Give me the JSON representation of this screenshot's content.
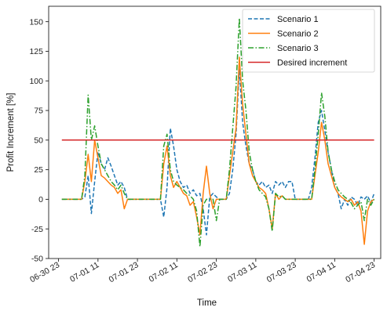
{
  "chart_data": {
    "type": "line",
    "title": "",
    "xlabel": "Time",
    "ylabel": "Profit Increment [%]",
    "xlim": [
      "2021-06-30 20:00",
      "2021-07-05 01:00"
    ],
    "ylim": [
      -50,
      163
    ],
    "yticks": [
      -50,
      -25,
      0,
      25,
      50,
      75,
      100,
      125,
      150
    ],
    "xticks": [
      {
        "t": "2021-06-30 23:00",
        "label": "06-30 23"
      },
      {
        "t": "2021-07-01 11:00",
        "label": "07-01 11"
      },
      {
        "t": "2021-07-01 23:00",
        "label": "07-01 23"
      },
      {
        "t": "2021-07-02 11:00",
        "label": "07-02 11"
      },
      {
        "t": "2021-07-02 23:00",
        "label": "07-02 23"
      },
      {
        "t": "2021-07-03 11:00",
        "label": "07-03 11"
      },
      {
        "t": "2021-07-03 23:00",
        "label": "07-03 23"
      },
      {
        "t": "2021-07-04 11:00",
        "label": "07-04 11"
      },
      {
        "t": "2021-07-04 23:00",
        "label": "07-04 23"
      }
    ],
    "grid": false,
    "legend_position": "top-right",
    "series": [
      {
        "name": "Scenario 1",
        "color": "#1f77b4",
        "dash": "dashed",
        "points": [
          [
            "2021-07-01 00:00",
            0
          ],
          [
            "2021-07-01 06:00",
            0
          ],
          [
            "2021-07-01 07:00",
            2
          ],
          [
            "2021-07-01 08:00",
            20
          ],
          [
            "2021-07-01 09:00",
            -12
          ],
          [
            "2021-07-01 10:00",
            15
          ],
          [
            "2021-07-01 11:00",
            40
          ],
          [
            "2021-07-01 12:00",
            30
          ],
          [
            "2021-07-01 13:00",
            25
          ],
          [
            "2021-07-01 14:00",
            35
          ],
          [
            "2021-07-01 15:00",
            28
          ],
          [
            "2021-07-01 16:00",
            20
          ],
          [
            "2021-07-01 17:00",
            12
          ],
          [
            "2021-07-01 18:00",
            15
          ],
          [
            "2021-07-01 19:00",
            10
          ],
          [
            "2021-07-01 20:00",
            0
          ],
          [
            "2021-07-02 06:00",
            0
          ],
          [
            "2021-07-02 07:00",
            -15
          ],
          [
            "2021-07-02 08:00",
            10
          ],
          [
            "2021-07-02 09:00",
            60
          ],
          [
            "2021-07-02 10:00",
            45
          ],
          [
            "2021-07-02 11:00",
            25
          ],
          [
            "2021-07-02 12:00",
            15
          ],
          [
            "2021-07-02 13:00",
            10
          ],
          [
            "2021-07-02 14:00",
            12
          ],
          [
            "2021-07-02 15:00",
            5
          ],
          [
            "2021-07-02 16:00",
            8
          ],
          [
            "2021-07-02 17:00",
            3
          ],
          [
            "2021-07-02 18:00",
            5
          ],
          [
            "2021-07-02 19:00",
            -8
          ],
          [
            "2021-07-02 20:00",
            -30
          ],
          [
            "2021-07-02 21:00",
            2
          ],
          [
            "2021-07-02 22:00",
            5
          ],
          [
            "2021-07-02 23:00",
            2
          ],
          [
            "2021-07-03 00:00",
            0
          ],
          [
            "2021-07-03 02:00",
            0
          ],
          [
            "2021-07-03 03:00",
            5
          ],
          [
            "2021-07-03 04:00",
            25
          ],
          [
            "2021-07-03 05:00",
            55
          ],
          [
            "2021-07-03 06:00",
            110
          ],
          [
            "2021-07-03 07:00",
            65
          ],
          [
            "2021-07-03 08:00",
            45
          ],
          [
            "2021-07-03 09:00",
            30
          ],
          [
            "2021-07-03 10:00",
            25
          ],
          [
            "2021-07-03 11:00",
            15
          ],
          [
            "2021-07-03 12:00",
            12
          ],
          [
            "2021-07-03 13:00",
            15
          ],
          [
            "2021-07-03 14:00",
            10
          ],
          [
            "2021-07-03 15:00",
            12
          ],
          [
            "2021-07-03 16:00",
            5
          ],
          [
            "2021-07-03 17:00",
            15
          ],
          [
            "2021-07-03 18:00",
            12
          ],
          [
            "2021-07-03 19:00",
            15
          ],
          [
            "2021-07-03 20:00",
            10
          ],
          [
            "2021-07-03 21:00",
            15
          ],
          [
            "2021-07-03 22:00",
            15
          ],
          [
            "2021-07-03 23:00",
            0
          ],
          [
            "2021-07-04 03:00",
            0
          ],
          [
            "2021-07-04 04:00",
            10
          ],
          [
            "2021-07-04 05:00",
            35
          ],
          [
            "2021-07-04 06:00",
            65
          ],
          [
            "2021-07-04 07:00",
            75
          ],
          [
            "2021-07-04 08:00",
            58
          ],
          [
            "2021-07-04 09:00",
            40
          ],
          [
            "2021-07-04 10:00",
            25
          ],
          [
            "2021-07-04 11:00",
            10
          ],
          [
            "2021-07-04 12:00",
            5
          ],
          [
            "2021-07-04 13:00",
            -8
          ],
          [
            "2021-07-04 14:00",
            0
          ],
          [
            "2021-07-04 15:00",
            -5
          ],
          [
            "2021-07-04 16:00",
            2
          ],
          [
            "2021-07-04 17:00",
            0
          ],
          [
            "2021-07-04 18:00",
            -5
          ],
          [
            "2021-07-04 19:00",
            2
          ],
          [
            "2021-07-04 20:00",
            0
          ],
          [
            "2021-07-04 21:00",
            3
          ],
          [
            "2021-07-04 22:00",
            -3
          ],
          [
            "2021-07-04 23:00",
            5
          ]
        ]
      },
      {
        "name": "Scenario 2",
        "color": "#ff7f0e",
        "dash": "solid",
        "points": [
          [
            "2021-07-01 00:00",
            0
          ],
          [
            "2021-07-01 06:00",
            0
          ],
          [
            "2021-07-01 07:00",
            15
          ],
          [
            "2021-07-01 08:00",
            38
          ],
          [
            "2021-07-01 09:00",
            15
          ],
          [
            "2021-07-01 10:00",
            50
          ],
          [
            "2021-07-01 11:00",
            35
          ],
          [
            "2021-07-01 12:00",
            20
          ],
          [
            "2021-07-01 13:00",
            18
          ],
          [
            "2021-07-01 14:00",
            15
          ],
          [
            "2021-07-01 15:00",
            12
          ],
          [
            "2021-07-01 16:00",
            10
          ],
          [
            "2021-07-01 17:00",
            5
          ],
          [
            "2021-07-01 18:00",
            8
          ],
          [
            "2021-07-01 19:00",
            -8
          ],
          [
            "2021-07-01 20:00",
            0
          ],
          [
            "2021-07-02 06:00",
            0
          ],
          [
            "2021-07-02 07:00",
            30
          ],
          [
            "2021-07-02 08:00",
            45
          ],
          [
            "2021-07-02 09:00",
            20
          ],
          [
            "2021-07-02 10:00",
            10
          ],
          [
            "2021-07-02 11:00",
            15
          ],
          [
            "2021-07-02 12:00",
            10
          ],
          [
            "2021-07-02 13:00",
            5
          ],
          [
            "2021-07-02 14:00",
            3
          ],
          [
            "2021-07-02 15:00",
            -5
          ],
          [
            "2021-07-02 16:00",
            -2
          ],
          [
            "2021-07-02 17:00",
            -15
          ],
          [
            "2021-07-02 18:00",
            -30
          ],
          [
            "2021-07-02 19:00",
            5
          ],
          [
            "2021-07-02 20:00",
            28
          ],
          [
            "2021-07-02 21:00",
            5
          ],
          [
            "2021-07-02 22:00",
            -8
          ],
          [
            "2021-07-02 23:00",
            0
          ],
          [
            "2021-07-03 02:00",
            0
          ],
          [
            "2021-07-03 03:00",
            20
          ],
          [
            "2021-07-03 04:00",
            40
          ],
          [
            "2021-07-03 05:00",
            60
          ],
          [
            "2021-07-03 06:00",
            120
          ],
          [
            "2021-07-03 07:00",
            80
          ],
          [
            "2021-07-03 08:00",
            55
          ],
          [
            "2021-07-03 09:00",
            30
          ],
          [
            "2021-07-03 10:00",
            20
          ],
          [
            "2021-07-03 11:00",
            15
          ],
          [
            "2021-07-03 12:00",
            10
          ],
          [
            "2021-07-03 13:00",
            8
          ],
          [
            "2021-07-03 14:00",
            5
          ],
          [
            "2021-07-03 15:00",
            -8
          ],
          [
            "2021-07-03 16:00",
            -25
          ],
          [
            "2021-07-03 17:00",
            5
          ],
          [
            "2021-07-03 18:00",
            0
          ],
          [
            "2021-07-03 19:00",
            3
          ],
          [
            "2021-07-03 20:00",
            0
          ],
          [
            "2021-07-04 04:00",
            0
          ],
          [
            "2021-07-04 05:00",
            20
          ],
          [
            "2021-07-04 06:00",
            40
          ],
          [
            "2021-07-04 07:00",
            65
          ],
          [
            "2021-07-04 08:00",
            50
          ],
          [
            "2021-07-04 09:00",
            30
          ],
          [
            "2021-07-04 10:00",
            20
          ],
          [
            "2021-07-04 11:00",
            10
          ],
          [
            "2021-07-04 12:00",
            5
          ],
          [
            "2021-07-04 13:00",
            2
          ],
          [
            "2021-07-04 14:00",
            0
          ],
          [
            "2021-07-04 15:00",
            -2
          ],
          [
            "2021-07-04 16:00",
            0
          ],
          [
            "2021-07-04 17:00",
            -5
          ],
          [
            "2021-07-04 18:00",
            -2
          ],
          [
            "2021-07-04 19:00",
            -10
          ],
          [
            "2021-07-04 20:00",
            -38
          ],
          [
            "2021-07-04 21:00",
            -10
          ],
          [
            "2021-07-04 22:00",
            -2
          ],
          [
            "2021-07-04 23:00",
            0
          ]
        ]
      },
      {
        "name": "Scenario 3",
        "color": "#2ca02c",
        "dash": "dashdot",
        "points": [
          [
            "2021-07-01 00:00",
            0
          ],
          [
            "2021-07-01 06:00",
            0
          ],
          [
            "2021-07-01 07:00",
            20
          ],
          [
            "2021-07-01 08:00",
            88
          ],
          [
            "2021-07-01 09:00",
            50
          ],
          [
            "2021-07-01 10:00",
            62
          ],
          [
            "2021-07-01 11:00",
            45
          ],
          [
            "2021-07-01 12:00",
            30
          ],
          [
            "2021-07-01 13:00",
            25
          ],
          [
            "2021-07-01 14:00",
            20
          ],
          [
            "2021-07-01 15:00",
            15
          ],
          [
            "2021-07-01 16:00",
            12
          ],
          [
            "2021-07-01 17:00",
            8
          ],
          [
            "2021-07-01 18:00",
            12
          ],
          [
            "2021-07-01 19:00",
            5
          ],
          [
            "2021-07-01 20:00",
            0
          ],
          [
            "2021-07-02 06:00",
            0
          ],
          [
            "2021-07-02 07:00",
            45
          ],
          [
            "2021-07-02 08:00",
            55
          ],
          [
            "2021-07-02 09:00",
            25
          ],
          [
            "2021-07-02 10:00",
            15
          ],
          [
            "2021-07-02 11:00",
            12
          ],
          [
            "2021-07-02 12:00",
            10
          ],
          [
            "2021-07-02 13:00",
            8
          ],
          [
            "2021-07-02 14:00",
            5
          ],
          [
            "2021-07-02 15:00",
            3
          ],
          [
            "2021-07-02 16:00",
            0
          ],
          [
            "2021-07-02 17:00",
            -10
          ],
          [
            "2021-07-02 18:00",
            -40
          ],
          [
            "2021-07-02 19:00",
            -5
          ],
          [
            "2021-07-02 20:00",
            0
          ],
          [
            "2021-07-02 22:00",
            0
          ],
          [
            "2021-07-02 23:00",
            -18
          ],
          [
            "2021-07-03 00:00",
            0
          ],
          [
            "2021-07-03 02:00",
            0
          ],
          [
            "2021-07-03 03:00",
            25
          ],
          [
            "2021-07-03 04:00",
            60
          ],
          [
            "2021-07-03 05:00",
            95
          ],
          [
            "2021-07-03 06:00",
            153
          ],
          [
            "2021-07-03 07:00",
            100
          ],
          [
            "2021-07-03 08:00",
            75
          ],
          [
            "2021-07-03 09:00",
            40
          ],
          [
            "2021-07-03 10:00",
            25
          ],
          [
            "2021-07-03 11:00",
            15
          ],
          [
            "2021-07-03 12:00",
            8
          ],
          [
            "2021-07-03 13:00",
            5
          ],
          [
            "2021-07-03 14:00",
            2
          ],
          [
            "2021-07-03 15:00",
            -8
          ],
          [
            "2021-07-03 16:00",
            -27
          ],
          [
            "2021-07-03 17:00",
            5
          ],
          [
            "2021-07-03 18:00",
            2
          ],
          [
            "2021-07-03 19:00",
            3
          ],
          [
            "2021-07-03 20:00",
            0
          ],
          [
            "2021-07-04 04:00",
            0
          ],
          [
            "2021-07-04 05:00",
            25
          ],
          [
            "2021-07-04 06:00",
            55
          ],
          [
            "2021-07-04 07:00",
            90
          ],
          [
            "2021-07-04 08:00",
            70
          ],
          [
            "2021-07-04 09:00",
            40
          ],
          [
            "2021-07-04 10:00",
            25
          ],
          [
            "2021-07-04 11:00",
            15
          ],
          [
            "2021-07-04 12:00",
            8
          ],
          [
            "2021-07-04 13:00",
            5
          ],
          [
            "2021-07-04 14:00",
            2
          ],
          [
            "2021-07-04 15:00",
            0
          ],
          [
            "2021-07-04 16:00",
            -3
          ],
          [
            "2021-07-04 17:00",
            -8
          ],
          [
            "2021-07-04 18:00",
            -5
          ],
          [
            "2021-07-04 19:00",
            -2
          ],
          [
            "2021-07-04 20:00",
            -18
          ],
          [
            "2021-07-04 21:00",
            0
          ],
          [
            "2021-07-04 22:00",
            -5
          ],
          [
            "2021-07-04 23:00",
            0
          ]
        ]
      },
      {
        "name": "Desired increment",
        "color": "#d62728",
        "dash": "solid",
        "points": [
          [
            "2021-07-01 00:00",
            50
          ],
          [
            "2021-07-04 23:00",
            50
          ]
        ]
      }
    ]
  }
}
